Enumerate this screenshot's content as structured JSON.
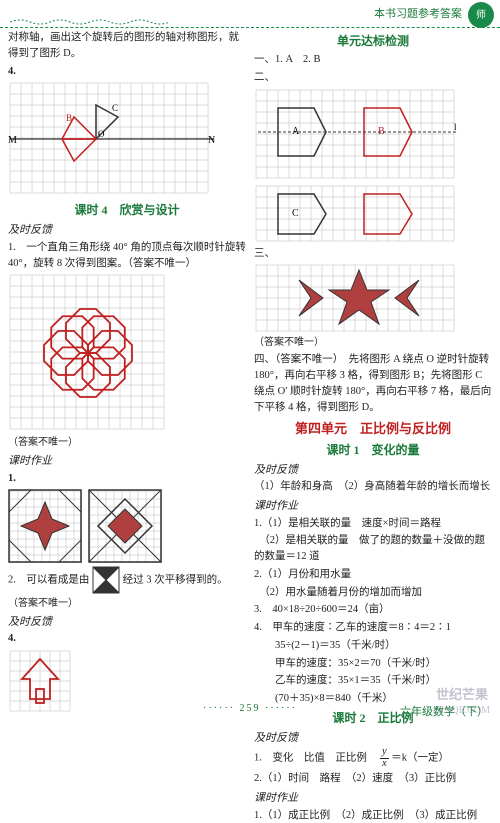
{
  "header": {
    "title": "本书习题参考答案",
    "badge": "师"
  },
  "left": {
    "intro": "对称轴，画出这个旋转后的图形的轴对称图形，就得到了图形 D。",
    "q4": "4.",
    "grid1": {
      "cols": 18,
      "rows": 10,
      "cell": 11,
      "labels": {
        "M": "M",
        "N": "N",
        "B": "B",
        "C": "C",
        "O": "O"
      }
    },
    "lesson4": "课时 4　欣赏与设计",
    "label1": "及时反馈",
    "p1": "1.　一个直角三角形绕 40° 角的顶点每次顺时针旋转 40°，旋转 8 次得到图案。（答案不唯一）",
    "grid2": {
      "cols": 14,
      "rows": 14,
      "cell": 11
    },
    "note1": "（答案不唯一）",
    "hw": "课时作业",
    "q1": "1.",
    "patterns": {
      "cell": 8,
      "size": 72
    },
    "p2a": "2.　可以看成是由",
    "p2b": "经过 3 次平移得到的。",
    "note2": "（答案不唯一）",
    "label2": "及时反馈",
    "q4b": "4.",
    "arrow_grid": {
      "cols": 6,
      "rows": 6,
      "cell": 10
    }
  },
  "right": {
    "unit_test": "单元达标检测",
    "a1": "一、1. A　2. B",
    "a2": "二、",
    "gridA": {
      "cols": 18,
      "rows": 8,
      "cell": 11,
      "A": "A",
      "B": "B",
      "l": "l"
    },
    "gridC": {
      "cols": 18,
      "rows": 5,
      "cell": 11,
      "C": "C"
    },
    "a3": "三、",
    "gridStar": {
      "cols": 18,
      "rows": 6,
      "cell": 11
    },
    "note3": "（答案不唯一）",
    "a4": "四、（答案不唯一）　先将图形 A 绕点 O 逆时针旋转 180°，再向右平移 3 格，得到图形 B；先将图形 C 绕点 O′ 顺时针旋转 180°，再向右平移 7 格，最后向下平移 4 格，得到图形 D。",
    "unit4": "第四单元　正比例与反比例",
    "lesson1": "课时 1　变化的量",
    "label_fb": "及时反馈",
    "fb1": "（1）年龄和身高　（2）身高随着年龄的增长而增长",
    "hw": "课时作业",
    "hw1a": "1.（1）是相关联的量　速度×时间＝路程",
    "hw1b": "　（2）是相关联的量　做了的题的数量＋没做的题的数量＝12 道",
    "hw2a": "2.（1）月份和用水量",
    "hw2b": "　（2）用水量随着月份的增加而增加",
    "hw3": "3.　40×18÷20÷600＝24（亩）",
    "hw4a": "4.　甲车的速度∶乙车的速度＝8∶4＝2∶1",
    "hw4b": "　　35÷(2－1)＝35（千米/时）",
    "hw4c": "　　甲车的速度：35×2＝70（千米/时）",
    "hw4d": "　　乙车的速度：35×1＝35（千米/时）",
    "hw4e": "　　(70＋35)×8＝840（千米）",
    "lesson2": "课时 2　正比例",
    "label_fb2": "及时反馈",
    "fb2_1a": "1.　变化　比值　正比例　",
    "fb2_1b": "＝k（一定）",
    "fb2_2": "2.（1）时间　路程　（2）速度　（3）正比例",
    "hw2": "课时作业",
    "hw2_1": "1.（1）成正比例　（2）成正比例　（3）成正比例"
  },
  "footer": {
    "text": "六年级数学（下）",
    "page": "259"
  },
  "colors": {
    "green": "#1a8a4a",
    "red": "#c02020",
    "grid": "#b8b8b8",
    "shape": "#333333",
    "fill_red": "#b04040"
  }
}
